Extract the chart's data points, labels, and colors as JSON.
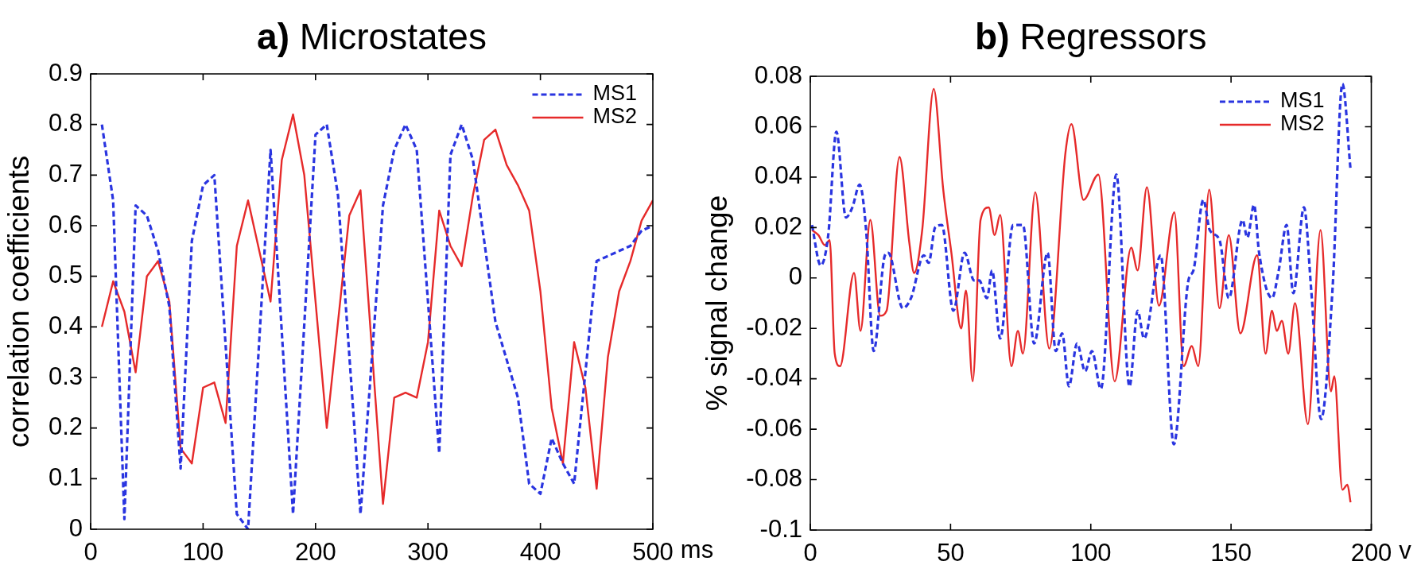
{
  "chart_data": [
    {
      "type": "line",
      "title": "a) Microstates",
      "xlabel": "ms",
      "ylabel": "correlation coefficients",
      "xlim": [
        0,
        500
      ],
      "xticks": [
        0,
        100,
        200,
        300,
        400,
        500
      ],
      "ylim": [
        0,
        0.9
      ],
      "yticks": [
        0,
        0.1,
        0.2,
        0.3,
        0.4,
        0.5,
        0.6,
        0.7,
        0.8,
        0.9
      ],
      "grid": false,
      "legend": "top right",
      "series": [
        {
          "name": "MS1",
          "color": "#2a35e0",
          "line_style": "dashed",
          "x": [
            10,
            20,
            30,
            40,
            50,
            60,
            70,
            80,
            90,
            100,
            110,
            130,
            140,
            160,
            180,
            200,
            210,
            220,
            240,
            260,
            270,
            280,
            290,
            310,
            320,
            330,
            340,
            360,
            380,
            390,
            400,
            410,
            420,
            430,
            450,
            460,
            470,
            480,
            490,
            500
          ],
          "values": [
            0.8,
            0.65,
            0.02,
            0.64,
            0.62,
            0.55,
            0.44,
            0.12,
            0.57,
            0.68,
            0.7,
            0.03,
            0.0,
            0.75,
            0.03,
            0.78,
            0.8,
            0.66,
            0.03,
            0.64,
            0.75,
            0.8,
            0.75,
            0.15,
            0.74,
            0.8,
            0.73,
            0.41,
            0.26,
            0.09,
            0.07,
            0.18,
            0.13,
            0.09,
            0.53,
            0.54,
            0.55,
            0.56,
            0.59,
            0.6
          ]
        },
        {
          "name": "MS2",
          "color": "#e62a2a",
          "line_style": "solid",
          "x": [
            10,
            20,
            30,
            40,
            50,
            60,
            70,
            80,
            90,
            100,
            110,
            120,
            130,
            140,
            160,
            170,
            180,
            190,
            210,
            230,
            240,
            260,
            270,
            280,
            290,
            300,
            310,
            320,
            330,
            340,
            350,
            360,
            370,
            380,
            390,
            400,
            410,
            420,
            430,
            440,
            450,
            460,
            470,
            480,
            490,
            500
          ],
          "values": [
            0.4,
            0.49,
            0.43,
            0.31,
            0.5,
            0.53,
            0.45,
            0.16,
            0.13,
            0.28,
            0.29,
            0.21,
            0.56,
            0.65,
            0.45,
            0.73,
            0.82,
            0.7,
            0.2,
            0.62,
            0.67,
            0.05,
            0.26,
            0.27,
            0.26,
            0.37,
            0.63,
            0.56,
            0.52,
            0.66,
            0.77,
            0.79,
            0.72,
            0.68,
            0.63,
            0.47,
            0.24,
            0.13,
            0.37,
            0.28,
            0.08,
            0.34,
            0.47,
            0.53,
            0.61,
            0.65
          ]
        }
      ]
    },
    {
      "type": "line",
      "title": "b) Regressors",
      "xlabel": "v",
      "ylabel": "% signal change",
      "xlim": [
        0,
        200
      ],
      "xticks": [
        0,
        50,
        100,
        150,
        200
      ],
      "ylim": [
        -0.1,
        0.08
      ],
      "yticks": [
        -0.1,
        -0.08,
        -0.06,
        -0.04,
        -0.02,
        0,
        0.02,
        0.04,
        0.06,
        0.08
      ],
      "grid": false,
      "legend": "top right",
      "series": [
        {
          "name": "MS1",
          "color": "#2a35e0",
          "line_style": "dashed",
          "x": [
            0.6,
            3.7,
            6.4,
            9.3,
            12.7,
            15,
            17.6,
            19.9,
            22.6,
            26.6,
            27.8,
            33,
            35.9,
            40.5,
            42.2,
            44.5,
            46.9,
            51,
            55,
            58.4,
            60.2,
            63,
            64.8,
            67.7,
            72.3,
            75.8,
            79.8,
            84.6,
            87.5,
            89.8,
            92.2,
            95.1,
            98,
            100.4,
            103.6,
            109.1,
            113.8,
            116.7,
            119,
            124.9,
            129.6,
            134.8,
            136.6,
            140.1,
            142.4,
            145.9,
            149.2,
            154.1,
            155.8,
            158.2,
            160,
            164.6,
            167,
            169.8,
            172.2,
            176,
            178.6,
            182.1,
            186.2,
            189.7,
            192.6
          ],
          "values": [
            0.021,
            0.005,
            0.017,
            0.058,
            0.024,
            0.028,
            0.037,
            0.019,
            -0.029,
            0.009,
            0.01,
            -0.012,
            -0.008,
            0.009,
            0.006,
            0.02,
            0.021,
            -0.013,
            0.01,
            -0.001,
            -0.001,
            -0.008,
            0.003,
            -0.024,
            0.021,
            0.021,
            -0.026,
            0.01,
            -0.029,
            -0.022,
            -0.043,
            -0.026,
            -0.037,
            -0.029,
            -0.044,
            0.041,
            -0.043,
            -0.013,
            -0.024,
            0.009,
            -0.066,
            -0.001,
            0.003,
            0.031,
            0.019,
            0.015,
            -0.008,
            0.023,
            0.016,
            0.029,
            0.01,
            -0.008,
            0.003,
            0.021,
            -0.006,
            0.028,
            -0.005,
            -0.056,
            -0.004,
            0.077,
            0.043
          ]
        },
        {
          "name": "MS2",
          "color": "#e62a2a",
          "line_style": "solid",
          "x": [
            0.6,
            2.9,
            5.2,
            6.9,
            8.7,
            10.6,
            15.6,
            17.9,
            21.4,
            24.9,
            27.2,
            31.8,
            35.3,
            37,
            39.9,
            44,
            47.4,
            50.3,
            53.8,
            55.5,
            57.9,
            60.7,
            63.6,
            65.7,
            67.7,
            71.7,
            74,
            75.8,
            80.2,
            85.2,
            91,
            93.1,
            97.4,
            102.7,
            108.5,
            114.4,
            116.7,
            120,
            124.3,
            129.8,
            133.1,
            136,
            138.3,
            142.2,
            145.9,
            149.2,
            153.3,
            159.3,
            162.3,
            164.6,
            166.3,
            168.1,
            170.4,
            172.8,
            177.4,
            181.9,
            185.6,
            186.8,
            189.7,
            191.5,
            192.6
          ],
          "values": [
            0.019,
            0.017,
            0.013,
            0.015,
            -0.03,
            -0.035,
            0.002,
            -0.021,
            0.023,
            -0.015,
            -0.013,
            0.048,
            0.014,
            0.002,
            0.019,
            0.075,
            0.035,
            0.01,
            -0.02,
            -0.005,
            -0.041,
            0.023,
            0.028,
            0.017,
            0.025,
            -0.035,
            -0.021,
            -0.03,
            0.034,
            -0.028,
            0.05,
            0.061,
            0.031,
            0.041,
            -0.041,
            0.012,
            0.003,
            0.036,
            -0.011,
            0.026,
            -0.035,
            -0.027,
            -0.035,
            0.035,
            -0.012,
            0.017,
            -0.022,
            0.009,
            -0.03,
            -0.013,
            -0.021,
            -0.017,
            -0.03,
            -0.01,
            -0.058,
            0.019,
            -0.045,
            -0.039,
            -0.084,
            -0.082,
            -0.089
          ]
        }
      ]
    }
  ]
}
